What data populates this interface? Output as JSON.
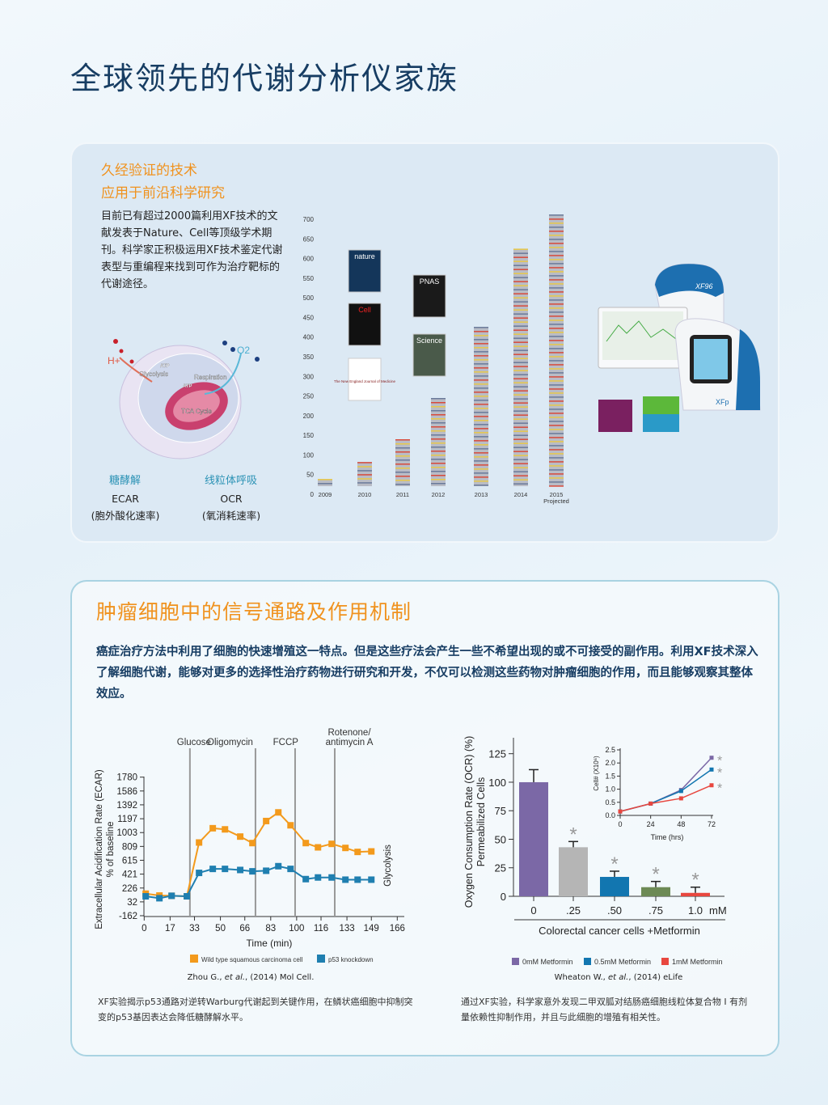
{
  "title": "全球领先的代谢分析仪家族",
  "section1": {
    "heading_line1": "久经验证的技术",
    "heading_line2": "应用于前沿科学研究",
    "body": "目前已有超过2000篇利用XF技术的文献发表于Nature、Cell等顶级学术期刊。科学家正积极运用XF技术鉴定代谢表型与重编程来找到可作为治疗靶标的代谢途径。",
    "diagram_labels": {
      "h": "H+",
      "o2": "O2",
      "glycolysis": "Glycolysis",
      "respiration": "Respiration",
      "tca": "TCA Cycle",
      "atp": "ATP"
    },
    "left_label": "糖酵解",
    "left_metric": "ECAR",
    "left_metric_cn": "(胞外酸化速率)",
    "right_label": "线粒体呼吸",
    "right_metric": "OCR",
    "right_metric_cn": "(氧消耗速率)",
    "journals": [
      "nature",
      "Cell",
      "The New England Journal of Medicine",
      "PNAS",
      "Science"
    ],
    "instrument_labels": [
      "XF96",
      "XFp"
    ]
  },
  "section2": {
    "heading": "肿瘤细胞中的信号通路及作用机制",
    "body": "癌症治疗方法中利用了细胞的快速增殖这一特点。但是这些疗法会产生一些不希望出现的或不可接受的副作用。利用XF技术深入了解细胞代谢，能够对更多的选择性治疗药物进行研究和开发，不仅可以检测这些药物对肿瘤细胞的作用，而且能够观察其整体效应。",
    "caption_left": "XF实验揭示p53通路对逆转Warburg代谢起到关键作用，在鳞状癌细胞中抑制突变的p53基因表达会降低糖酵解水平。",
    "caption_right": "通过XF实验，科学家意外发现二甲双胍对结肠癌细胞线粒体复合物 I 有剂量依赖性抑制作用，并且与此细胞的增殖有相关性。",
    "citation_left_a": "Zhou G., ",
    "citation_left_b": "et al.",
    "citation_left_c": ", (2014) Mol Cell.",
    "citation_right_a": "Wheaton W., ",
    "citation_right_b": "et al.",
    "citation_right_c": ", (2014) eLife"
  },
  "colors": {
    "orange": "#f0921e",
    "navy": "#173d63",
    "teal": "#2b92b5",
    "ecar_wt": "#f39a1c",
    "ecar_ko": "#1f7fb0",
    "purple": "#7b68a6",
    "gray": "#b5b5b5",
    "blue": "#1276b0",
    "green": "#6d8a55",
    "red": "#e8473f"
  },
  "chart_data": [
    {
      "type": "bar",
      "categories": [
        "2009",
        "2010",
        "2011",
        "2012",
        "2013",
        "2014",
        "2015\nProjected"
      ],
      "tick_labels": [
        "2009",
        "2010",
        "2011",
        "2012",
        "2013",
        "2014",
        "2015",
        "Projected"
      ],
      "values": [
        39,
        82,
        140,
        245,
        426,
        625,
        712
      ],
      "ylim": [
        0,
        700
      ],
      "yticks": [
        0,
        50,
        100,
        150,
        200,
        250,
        300,
        350,
        400,
        450,
        500,
        550,
        600,
        650,
        700
      ],
      "style": "stacked journal icons"
    },
    {
      "type": "line",
      "xlabel": "Time (min)",
      "ylabel": "Extracellular Acidification Rate (ECAR)",
      "ylabel2": "% of baseline",
      "right_label": "Glycolysis",
      "xticks": [
        0,
        17,
        33,
        50,
        66,
        83,
        100,
        116,
        133,
        149,
        166
      ],
      "yticks": [
        -162,
        32,
        226,
        421,
        615,
        809,
        1003,
        1197,
        1392,
        1586,
        1780
      ],
      "xlim": [
        0,
        166
      ],
      "ylim": [
        -162,
        1780
      ],
      "injections": [
        {
          "label": "Glucose",
          "x": 30
        },
        {
          "label": "Oligomycin",
          "x": 73
        },
        {
          "label": "FCCP",
          "x": 99
        },
        {
          "label": "Rotenone/",
          "label2": "antimycin A",
          "x": 125
        }
      ],
      "x": [
        1,
        10,
        18,
        28,
        36,
        45,
        53,
        63,
        71,
        80,
        88,
        96,
        106,
        114,
        123,
        132,
        140,
        149
      ],
      "series": [
        {
          "name": "Wild type squamous carcinoma cell",
          "color": "#f39a1c",
          "values": [
            147,
            121,
            117,
            110,
            864,
            1064,
            1048,
            947,
            856,
            1165,
            1286,
            1105,
            856,
            796,
            845,
            788,
            732,
            739
          ]
        },
        {
          "name": "p53 knockdown",
          "color": "#1f7fb0",
          "values": [
            110,
            83,
            117,
            110,
            438,
            494,
            494,
            479,
            460,
            468,
            532,
            494,
            351,
            374,
            374,
            343,
            343,
            343
          ]
        }
      ]
    },
    {
      "type": "bar",
      "ylabel": "Oxygen Consumption Rate (OCR) (%)",
      "ylabel2": "Permeabilized Cells",
      "xlabel": "Colorectal cancer cells   +Metformin",
      "unit": "mM",
      "categories": [
        "0",
        ".25",
        ".50",
        ".75",
        "1.0"
      ],
      "values": [
        100,
        43,
        17,
        8,
        3
      ],
      "errors": [
        11,
        5,
        5,
        5,
        5
      ],
      "significant": [
        false,
        true,
        true,
        true,
        true
      ],
      "colors": [
        "#7b68a6",
        "#b5b5b5",
        "#1276b0",
        "#6d8a55",
        "#e8473f"
      ],
      "ylim": [
        0,
        125
      ],
      "yticks": [
        0,
        25,
        50,
        75,
        100,
        125
      ]
    },
    {
      "type": "line",
      "xlabel": "Time (hrs)",
      "ylabel": "Cell# (X10⁶)",
      "xticks": [
        0,
        24,
        48,
        72
      ],
      "yticks": [
        "0.0",
        "0.5",
        "1.0",
        "1.5",
        "2.0",
        "2.5"
      ],
      "xlim": [
        0,
        72
      ],
      "ylim": [
        0,
        2.5
      ],
      "x": [
        0,
        24,
        48,
        72
      ],
      "series": [
        {
          "name": "0mM Metformin",
          "color": "#7b68a6",
          "values": [
            0.15,
            0.45,
            0.97,
            2.2
          ]
        },
        {
          "name": "0.5mM Metformin",
          "color": "#1276b0",
          "values": [
            0.15,
            0.45,
            0.93,
            1.75
          ]
        },
        {
          "name": "1mM Metformin",
          "color": "#e8473f",
          "values": [
            0.15,
            0.45,
            0.65,
            1.15
          ]
        }
      ]
    }
  ]
}
